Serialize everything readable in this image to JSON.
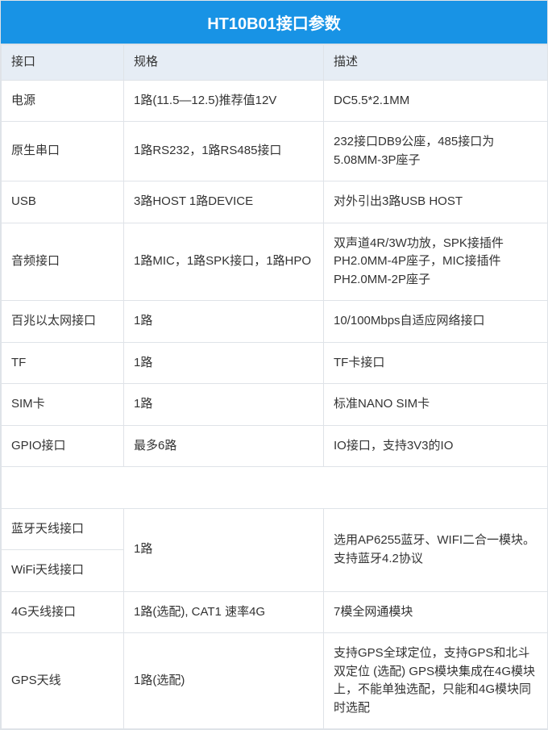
{
  "title": "HT10B01接口参数",
  "columns": [
    "接口",
    "规格",
    "描述"
  ],
  "colors": {
    "header_bg": "#1893e5",
    "header_text": "#ffffff",
    "col_header_bg": "#e6edf5",
    "border": "#dfe3e8",
    "text": "#333333"
  },
  "rows": {
    "power": {
      "iface": "电源",
      "spec": "1路(11.5—12.5)推荐值12V",
      "desc": "DC5.5*2.1MM"
    },
    "serial": {
      "iface": "原生串口",
      "spec": "1路RS232，1路RS485接口",
      "desc": "232接口DB9公座，485接口为5.08MM-3P座子"
    },
    "usb": {
      "iface": "USB",
      "spec": "3路HOST 1路DEVICE",
      "desc": "对外引出3路USB HOST"
    },
    "audio": {
      "iface": "音频接口",
      "spec": "1路MIC，1路SPK接口，1路HPO",
      "desc": "双声道4R/3W功放，SPK接插件PH2.0MM-4P座子，MIC接插件PH2.0MM-2P座子"
    },
    "eth": {
      "iface": "百兆以太网接口",
      "spec": "1路",
      "desc": "10/100Mbps自适应网络接口"
    },
    "tf": {
      "iface": "TF",
      "spec": "1路",
      "desc": "TF卡接口"
    },
    "sim": {
      "iface": "SIM卡",
      "spec": "1路",
      "desc": "标准NANO SIM卡"
    },
    "gpio": {
      "iface": "GPIO接口",
      "spec": "最多6路",
      "desc": "IO接口，支持3V3的IO"
    },
    "bt": {
      "iface": "蓝牙天线接口"
    },
    "wifi": {
      "iface": "WiFi天线接口"
    },
    "btwifi": {
      "spec": "1路",
      "desc": "选用AP6255蓝牙、WIFI二合一模块。支持蓝牙4.2协议"
    },
    "fourg": {
      "iface": "4G天线接口",
      "spec": "1路(选配), CAT1 速率4G",
      "desc": "7模全网通模块"
    },
    "gps": {
      "iface": "GPS天线",
      "spec": "1路(选配)",
      "desc": "支持GPS全球定位，支持GPS和北斗双定位 (选配) GPS模块集成在4G模块上，不能单独选配，只能和4G模块同时选配"
    }
  }
}
